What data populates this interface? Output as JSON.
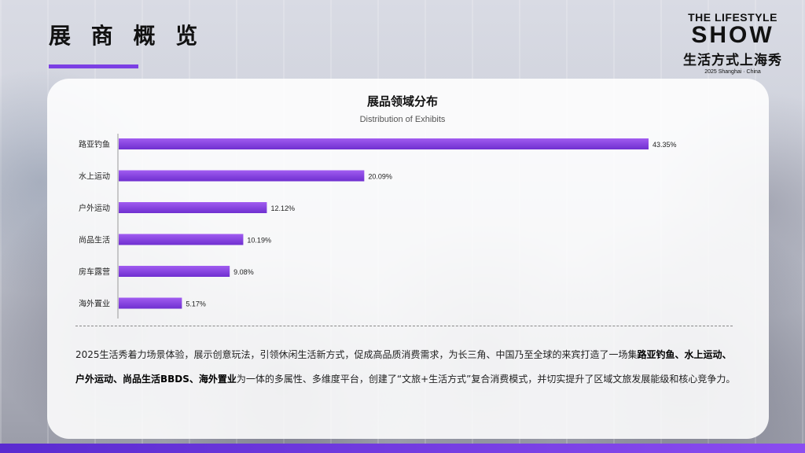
{
  "page": {
    "title": "展 商 概 览",
    "accent_color": "#7b3fe4"
  },
  "logo": {
    "line1": "THE LIFESTYLE",
    "line2": "SHOW",
    "line3": "生活方式上海秀",
    "line4": "2025 Shanghai · China"
  },
  "chart_data": {
    "type": "bar",
    "orientation": "horizontal",
    "title": "展品领域分布",
    "subtitle": "Distribution of Exhibits",
    "categories": [
      "路亚钓鱼",
      "水上运动",
      "户外运动",
      "尚品生活",
      "房车露营",
      "海外置业"
    ],
    "values": [
      43.35,
      20.09,
      12.12,
      10.19,
      9.08,
      5.17
    ],
    "value_labels": [
      "43.35%",
      "20.09%",
      "12.12%",
      "10.19%",
      "9.08%",
      "5.17%"
    ],
    "unit": "%",
    "bar_color": "#8a3fe0",
    "grid": false,
    "legend": "none"
  },
  "description": {
    "part1": "2025生活秀着力场景体验，展示创意玩法，引领休闲生活新方式，促成高品质消费需求，为长三角、中国乃至全球的来宾打造了一场集",
    "bold1": "路亚钓鱼、水上运动、户外运动、尚品生活BBDS、海外置业",
    "part2": "为一体的多属性、多维度平台，创建了“文旅+生活方式”复合消费模式，并切实提升了区域文旅发展能级和核心竞争力。"
  }
}
